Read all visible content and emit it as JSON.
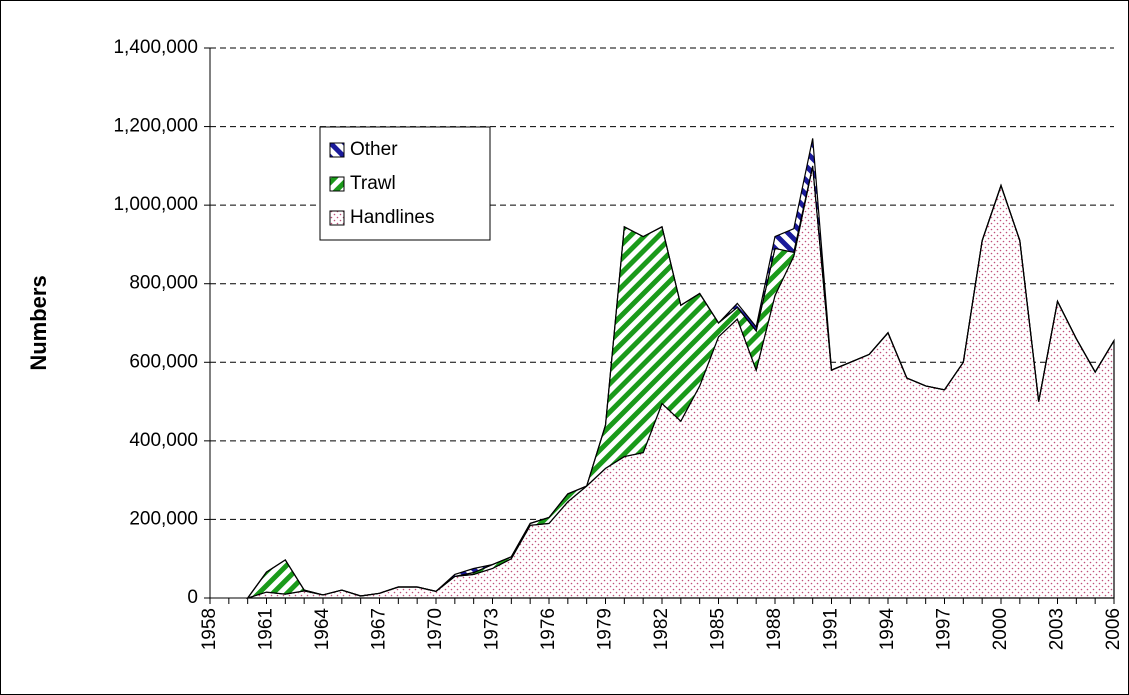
{
  "chart_data": {
    "type": "stacked_area",
    "y_axis_label": "Numbers",
    "categories": [
      "1958",
      null,
      null,
      "1961",
      null,
      null,
      "1964",
      null,
      null,
      "1967",
      null,
      null,
      "1970",
      null,
      null,
      "1973",
      null,
      null,
      "1976",
      null,
      null,
      "1979",
      null,
      null,
      "1982",
      null,
      null,
      "1985",
      null,
      null,
      "1988",
      null,
      null,
      "1991",
      null,
      null,
      "1994",
      null,
      null,
      "1997",
      null,
      null,
      "2000",
      null,
      null,
      "2003",
      null,
      null,
      "2006"
    ],
    "series": [
      {
        "name": "Handlines",
        "color": "#c0507a",
        "values": [
          null,
          null,
          0,
          15000,
          10000,
          18000,
          8000,
          20000,
          5000,
          12000,
          28000,
          28000,
          17000,
          55000,
          60000,
          75000,
          100000,
          185000,
          190000,
          245000,
          285000,
          330000,
          360000,
          370000,
          495000,
          450000,
          540000,
          665000,
          710000,
          580000,
          770000,
          870000,
          1100000,
          580000,
          600000,
          620000,
          675000,
          560000,
          540000,
          530000,
          600000,
          910000,
          1050000,
          910000,
          500000,
          755000,
          660000,
          575000,
          655000
        ]
      },
      {
        "name": "Trawl",
        "color": "#1a9a1a",
        "values": [
          null,
          null,
          0,
          51000,
          87000,
          2000,
          0,
          0,
          0,
          0,
          0,
          0,
          0,
          0,
          5000,
          10000,
          5000,
          5000,
          15000,
          20000,
          0,
          110000,
          585000,
          550000,
          450000,
          295000,
          235000,
          35000,
          30000,
          100000,
          120000,
          10000,
          0,
          0,
          0,
          0,
          0,
          0,
          0,
          0,
          0,
          0,
          0,
          0,
          0,
          0,
          0,
          0,
          0
        ]
      },
      {
        "name": "Other",
        "color": "#1a1a9a",
        "values": [
          null,
          null,
          0,
          0,
          0,
          0,
          0,
          0,
          0,
          0,
          0,
          0,
          0,
          5000,
          10000,
          0,
          0,
          0,
          0,
          0,
          0,
          0,
          0,
          0,
          0,
          0,
          0,
          0,
          10000,
          10000,
          30000,
          60000,
          70000,
          0,
          0,
          0,
          0,
          0,
          0,
          0,
          0,
          0,
          0,
          0,
          0,
          0,
          0,
          0,
          0
        ]
      }
    ],
    "ylim": [
      0,
      1400000
    ],
    "yticks": [
      {
        "value": 0,
        "label": "0"
      },
      {
        "value": 200000,
        "label": "200,000"
      },
      {
        "value": 400000,
        "label": "400,000"
      },
      {
        "value": 600000,
        "label": "600,000"
      },
      {
        "value": 800000,
        "label": "800,000"
      },
      {
        "value": 1000000,
        "label": "1,000,000"
      },
      {
        "value": 1200000,
        "label": "1,200,000"
      },
      {
        "value": 1400000,
        "label": "1,400,000"
      }
    ],
    "grid": true,
    "legend": "upper-left"
  }
}
